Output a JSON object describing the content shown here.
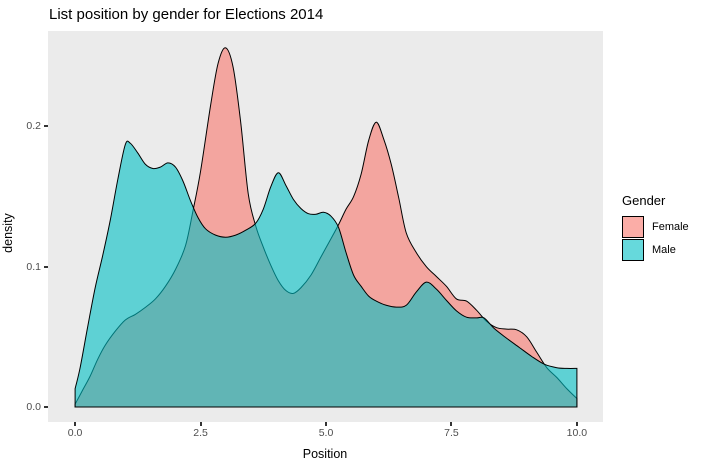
{
  "chart_data": {
    "type": "area",
    "subtype": "density",
    "title": "List position by gender for Elections 2014",
    "xlabel": "Position",
    "ylabel": "density",
    "x_ticks": {
      "values": [
        0,
        2.5,
        5,
        7.5,
        10
      ],
      "labels": [
        "0.0",
        "2.5",
        "5.0",
        "7.5",
        "10.0"
      ]
    },
    "y_ticks": {
      "values": [
        0,
        0.1,
        0.2
      ],
      "labels": [
        "0.0",
        "0.1",
        "0.2"
      ]
    },
    "xlim": [
      -0.54,
      10.52
    ],
    "ylim": [
      -0.0107,
      0.268
    ],
    "grid": "off",
    "panel_background": "#EBEBEB",
    "outline_color": "#000000",
    "fill_alpha": 0.6,
    "legend": {
      "title": "Gender",
      "position": "right",
      "entries": [
        {
          "label": "Female",
          "color": "#F8766D"
        },
        {
          "label": "Male",
          "color": "#00BFC4"
        }
      ]
    },
    "series": [
      {
        "name": "Female",
        "color": "#F8766D",
        "points": [
          [
            0,
            0.002
          ],
          [
            0.15,
            0.012
          ],
          [
            0.3,
            0.022
          ],
          [
            0.45,
            0.034
          ],
          [
            0.6,
            0.044
          ],
          [
            0.8,
            0.054
          ],
          [
            1,
            0.062
          ],
          [
            1.2,
            0.066
          ],
          [
            1.4,
            0.071
          ],
          [
            1.6,
            0.077
          ],
          [
            1.8,
            0.086
          ],
          [
            2,
            0.098
          ],
          [
            2.2,
            0.115
          ],
          [
            2.35,
            0.14
          ],
          [
            2.5,
            0.168
          ],
          [
            2.7,
            0.215
          ],
          [
            2.85,
            0.245
          ],
          [
            3,
            0.256
          ],
          [
            3.15,
            0.242
          ],
          [
            3.3,
            0.203
          ],
          [
            3.45,
            0.152
          ],
          [
            3.6,
            0.129
          ],
          [
            3.75,
            0.114
          ],
          [
            3.9,
            0.101
          ],
          [
            4.05,
            0.09
          ],
          [
            4.2,
            0.083
          ],
          [
            4.35,
            0.081
          ],
          [
            4.5,
            0.085
          ],
          [
            4.7,
            0.094
          ],
          [
            4.9,
            0.107
          ],
          [
            5.1,
            0.12
          ],
          [
            5.25,
            0.13
          ],
          [
            5.4,
            0.141
          ],
          [
            5.55,
            0.15
          ],
          [
            5.7,
            0.166
          ],
          [
            5.85,
            0.19
          ],
          [
            6,
            0.203
          ],
          [
            6.15,
            0.191
          ],
          [
            6.3,
            0.173
          ],
          [
            6.45,
            0.149
          ],
          [
            6.6,
            0.124
          ],
          [
            6.8,
            0.11
          ],
          [
            7,
            0.1
          ],
          [
            7.2,
            0.093
          ],
          [
            7.4,
            0.086
          ],
          [
            7.6,
            0.077
          ],
          [
            7.8,
            0.0755
          ],
          [
            8,
            0.069
          ],
          [
            8.2,
            0.061
          ],
          [
            8.4,
            0.0565
          ],
          [
            8.6,
            0.0555
          ],
          [
            8.8,
            0.055
          ],
          [
            9,
            0.05
          ],
          [
            9.2,
            0.039
          ],
          [
            9.4,
            0.028
          ],
          [
            9.6,
            0.021
          ],
          [
            9.8,
            0.013
          ],
          [
            10,
            0.006
          ]
        ]
      },
      {
        "name": "Male",
        "color": "#00BFC4",
        "points": [
          [
            0,
            0.013
          ],
          [
            0.1,
            0.028
          ],
          [
            0.25,
            0.057
          ],
          [
            0.4,
            0.085
          ],
          [
            0.55,
            0.108
          ],
          [
            0.7,
            0.133
          ],
          [
            0.85,
            0.162
          ],
          [
            1,
            0.187
          ],
          [
            1.1,
            0.188
          ],
          [
            1.25,
            0.181
          ],
          [
            1.4,
            0.173
          ],
          [
            1.55,
            0.17
          ],
          [
            1.7,
            0.171
          ],
          [
            1.85,
            0.174
          ],
          [
            2,
            0.171
          ],
          [
            2.15,
            0.161
          ],
          [
            2.3,
            0.147
          ],
          [
            2.45,
            0.135
          ],
          [
            2.6,
            0.127
          ],
          [
            2.8,
            0.1225
          ],
          [
            3,
            0.121
          ],
          [
            3.2,
            0.1225
          ],
          [
            3.4,
            0.126
          ],
          [
            3.6,
            0.131
          ],
          [
            3.75,
            0.141
          ],
          [
            3.9,
            0.157
          ],
          [
            4.05,
            0.167
          ],
          [
            4.2,
            0.158
          ],
          [
            4.35,
            0.148
          ],
          [
            4.5,
            0.1415
          ],
          [
            4.65,
            0.1378
          ],
          [
            4.8,
            0.1374
          ],
          [
            4.95,
            0.1388
          ],
          [
            5.1,
            0.136
          ],
          [
            5.25,
            0.128
          ],
          [
            5.4,
            0.11
          ],
          [
            5.55,
            0.094
          ],
          [
            5.7,
            0.086
          ],
          [
            5.85,
            0.079
          ],
          [
            6,
            0.0755
          ],
          [
            6.2,
            0.0725
          ],
          [
            6.4,
            0.0712
          ],
          [
            6.6,
            0.0725
          ],
          [
            6.8,
            0.082
          ],
          [
            7,
            0.089
          ],
          [
            7.2,
            0.084
          ],
          [
            7.4,
            0.076
          ],
          [
            7.6,
            0.0685
          ],
          [
            7.8,
            0.064
          ],
          [
            8,
            0.0635
          ],
          [
            8.15,
            0.0635
          ],
          [
            8.35,
            0.056
          ],
          [
            8.6,
            0.049
          ],
          [
            8.85,
            0.0425
          ],
          [
            9.1,
            0.036
          ],
          [
            9.35,
            0.0305
          ],
          [
            9.6,
            0.028
          ],
          [
            9.8,
            0.0275
          ],
          [
            10,
            0.0275
          ]
        ]
      }
    ]
  }
}
